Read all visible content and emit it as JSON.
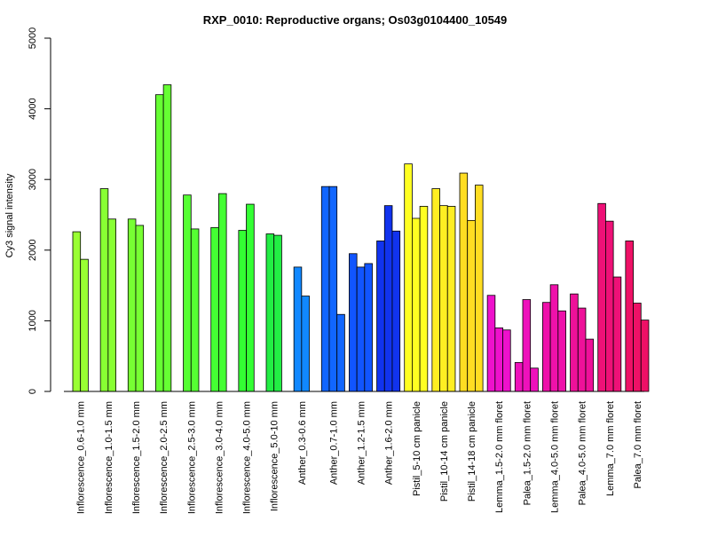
{
  "chart_data": {
    "type": "bar",
    "title": "RXP_0010: Reproductive organs; Os03g0104400_10549",
    "xlabel": "",
    "ylabel": "Cy3 signal intensity",
    "ylim": [
      0,
      5000
    ],
    "yticks": [
      0,
      1000,
      2000,
      3000,
      4000,
      5000
    ],
    "grid": false,
    "legend": "none",
    "groups": [
      {
        "label": "Inflorescence_0.6-1.0 mm",
        "color": "#99ff33",
        "values": [
          2260,
          1870
        ]
      },
      {
        "label": "Inflorescence_1.0-1.5 mm",
        "color": "#88ff33",
        "values": [
          2870,
          2440
        ]
      },
      {
        "label": "Inflorescence_1.5-2.0 mm",
        "color": "#77ff33",
        "values": [
          2440,
          2350
        ]
      },
      {
        "label": "Inflorescence_2.0-2.5 mm",
        "color": "#66ff33",
        "values": [
          4200,
          4340
        ]
      },
      {
        "label": "Inflorescence_2.5-3.0 mm",
        "color": "#55ff33",
        "values": [
          2780,
          2300
        ]
      },
      {
        "label": "Inflorescence_3.0-4.0 mm",
        "color": "#44ff33",
        "values": [
          2320,
          2800
        ]
      },
      {
        "label": "Inflorescence_4.0-5.0 mm",
        "color": "#33ff33",
        "values": [
          2280,
          2650
        ]
      },
      {
        "label": "Inflorescence_5.0-10 mm",
        "color": "#22ee44",
        "values": [
          2230,
          2210
        ]
      },
      {
        "label": "Anther_0.3-0.6 mm",
        "color": "#1188ff",
        "values": [
          1760,
          1350
        ]
      },
      {
        "label": "Anther_0.7-1.0 mm",
        "color": "#1166ff",
        "values": [
          2900,
          2900,
          1090
        ]
      },
      {
        "label": "Anther_1.2-1.5 mm",
        "color": "#1155ff",
        "values": [
          1950,
          1760,
          1810
        ]
      },
      {
        "label": "Anther_1.6-2.0 mm",
        "color": "#1133ee",
        "values": [
          2130,
          2630,
          2270
        ]
      },
      {
        "label": "Pistil_5-10 cm panicle",
        "color": "#ffff22",
        "values": [
          3220,
          2450,
          2620
        ]
      },
      {
        "label": "Pistil_10-14 cm panicle",
        "color": "#ffee22",
        "values": [
          2870,
          2630,
          2620
        ]
      },
      {
        "label": "Pistil_14-18 cm panicle",
        "color": "#ffdd22",
        "values": [
          3090,
          2420,
          2920
        ]
      },
      {
        "label": "Lemma_1.5-2.0 mm floret",
        "color": "#ee11cc",
        "values": [
          1360,
          900,
          870
        ]
      },
      {
        "label": "Palea_1.5-2.0 mm floret",
        "color": "#ee11bb",
        "values": [
          410,
          1300,
          330
        ]
      },
      {
        "label": "Lemma_4.0-5.0 mm floret",
        "color": "#ee11aa",
        "values": [
          1260,
          1510,
          1140
        ]
      },
      {
        "label": "Palea_4.0-5.0 mm floret",
        "color": "#ee1199",
        "values": [
          1380,
          1180,
          740
        ]
      },
      {
        "label": "Lemma_7.0 mm floret",
        "color": "#ee1177",
        "values": [
          2660,
          2410,
          1620
        ]
      },
      {
        "label": "Palea_7.0 mm floret",
        "color": "#ee1166",
        "values": [
          2130,
          1250,
          1010
        ]
      }
    ]
  }
}
